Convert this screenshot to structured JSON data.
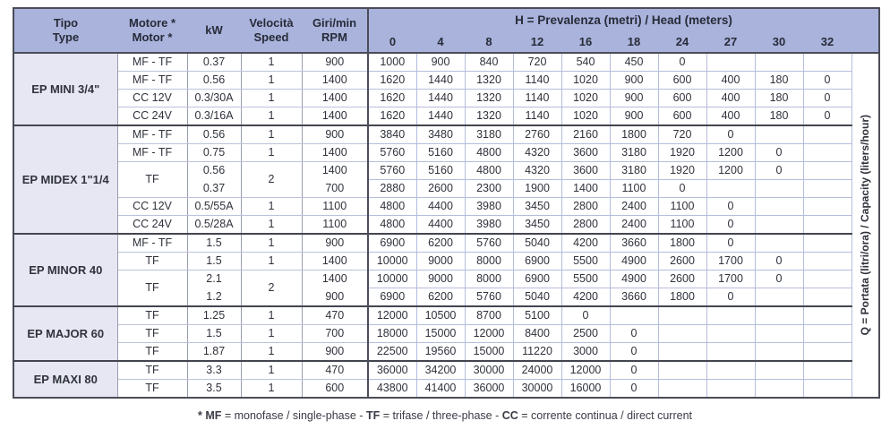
{
  "header": {
    "columns": [
      {
        "line1": "Tipo",
        "line2": "Type"
      },
      {
        "line1": "Motore *",
        "line2": "Motor *"
      },
      {
        "line1": "kW",
        "line2": ""
      },
      {
        "line1": "Velocità",
        "line2": "Speed"
      },
      {
        "line1": "Giri/min",
        "line2": "RPM"
      }
    ],
    "head_title": {
      "bold": "H",
      "rest": " = Prevalenza (metri) / Head (meters)"
    },
    "head_values": [
      "0",
      "4",
      "8",
      "12",
      "16",
      "18",
      "24",
      "27",
      "30",
      "32"
    ]
  },
  "q_label": {
    "bold": "Q",
    "rest": " = Portata (litri/ora) / Capacity (liters/hour)"
  },
  "groups": [
    {
      "name": "EP MINI 3/4\"",
      "rows": [
        {
          "motor": "MF - TF",
          "kw": "0.37",
          "speed": "1",
          "rpm": "900",
          "q": [
            "1000",
            "900",
            "840",
            "720",
            "540",
            "450",
            "0",
            "",
            "",
            ""
          ]
        },
        {
          "motor": "MF - TF",
          "kw": "0.56",
          "speed": "1",
          "rpm": "1400",
          "q": [
            "1620",
            "1440",
            "1320",
            "1140",
            "1020",
            "900",
            "600",
            "400",
            "180",
            "0"
          ]
        },
        {
          "motor": "CC 12V",
          "kw": "0.3/30A",
          "speed": "1",
          "rpm": "1400",
          "q": [
            "1620",
            "1440",
            "1320",
            "1140",
            "1020",
            "900",
            "600",
            "400",
            "180",
            "0"
          ]
        },
        {
          "motor": "CC 24V",
          "kw": "0.3/16A",
          "speed": "1",
          "rpm": "1400",
          "q": [
            "1620",
            "1440",
            "1320",
            "1140",
            "1020",
            "900",
            "600",
            "400",
            "180",
            "0"
          ]
        }
      ]
    },
    {
      "name": "EP MIDEX 1\"1/4",
      "rows": [
        {
          "motor": "MF - TF",
          "kw": "0.56",
          "speed": "1",
          "rpm": "900",
          "q": [
            "3840",
            "3480",
            "3180",
            "2760",
            "2160",
            "1800",
            "720",
            "0",
            "",
            ""
          ]
        },
        {
          "motor": "MF - TF",
          "kw": "0.75",
          "speed": "1",
          "rpm": "1400",
          "q": [
            "5760",
            "5160",
            "4800",
            "4320",
            "3600",
            "3180",
            "1920",
            "1200",
            "0",
            ""
          ]
        },
        {
          "motor": "TF",
          "speed": "2",
          "sub": [
            {
              "kw": "0.56",
              "rpm": "1400",
              "q": [
                "5760",
                "5160",
                "4800",
                "4320",
                "3600",
                "3180",
                "1920",
                "1200",
                "0",
                ""
              ]
            },
            {
              "kw": "0.37",
              "rpm": "700",
              "q": [
                "2880",
                "2600",
                "2300",
                "1900",
                "1400",
                "1100",
                "0",
                "",
                "",
                ""
              ]
            }
          ]
        },
        {
          "motor": "CC 12V",
          "kw": "0.5/55A",
          "speed": "1",
          "rpm": "1100",
          "q": [
            "4800",
            "4400",
            "3980",
            "3450",
            "2800",
            "2400",
            "1100",
            "0",
            "",
            ""
          ]
        },
        {
          "motor": "CC 24V",
          "kw": "0.5/28A",
          "speed": "1",
          "rpm": "1100",
          "q": [
            "4800",
            "4400",
            "3980",
            "3450",
            "2800",
            "2400",
            "1100",
            "0",
            "",
            ""
          ]
        }
      ]
    },
    {
      "name": "EP MINOR 40",
      "rows": [
        {
          "motor": "MF - TF",
          "kw": "1.5",
          "speed": "1",
          "rpm": "900",
          "q": [
            "6900",
            "6200",
            "5760",
            "5040",
            "4200",
            "3660",
            "1800",
            "0",
            "",
            ""
          ]
        },
        {
          "motor": "TF",
          "kw": "1.5",
          "speed": "1",
          "rpm": "1400",
          "q": [
            "10000",
            "9000",
            "8000",
            "6900",
            "5500",
            "4900",
            "2600",
            "1700",
            "0",
            ""
          ]
        },
        {
          "motor": "TF",
          "speed": "2",
          "sub": [
            {
              "kw": "2.1",
              "rpm": "1400",
              "q": [
                "10000",
                "9000",
                "8000",
                "6900",
                "5500",
                "4900",
                "2600",
                "1700",
                "0",
                ""
              ]
            },
            {
              "kw": "1.2",
              "rpm": "900",
              "q": [
                "6900",
                "6200",
                "5760",
                "5040",
                "4200",
                "3660",
                "1800",
                "0",
                "",
                ""
              ]
            }
          ]
        }
      ]
    },
    {
      "name": "EP MAJOR 60",
      "rows": [
        {
          "motor": "TF",
          "kw": "1.25",
          "speed": "1",
          "rpm": "470",
          "q": [
            "12000",
            "10500",
            "8700",
            "5100",
            "0",
            "",
            "",
            "",
            "",
            ""
          ]
        },
        {
          "motor": "TF",
          "kw": "1.5",
          "speed": "1",
          "rpm": "700",
          "q": [
            "18000",
            "15000",
            "12000",
            "8400",
            "2500",
            "0",
            "",
            "",
            "",
            ""
          ]
        },
        {
          "motor": "TF",
          "kw": "1.87",
          "speed": "1",
          "rpm": "900",
          "q": [
            "22500",
            "19560",
            "15000",
            "11220",
            "3000",
            "0",
            "",
            "",
            "",
            ""
          ]
        }
      ]
    },
    {
      "name": "EP MAXI 80",
      "rows": [
        {
          "motor": "TF",
          "kw": "3.3",
          "speed": "1",
          "rpm": "470",
          "q": [
            "36000",
            "34200",
            "30000",
            "24000",
            "12000",
            "0",
            "",
            "",
            "",
            ""
          ]
        },
        {
          "motor": "TF",
          "kw": "3.5",
          "speed": "1",
          "rpm": "600",
          "q": [
            "43800",
            "41400",
            "36000",
            "30000",
            "16000",
            "0",
            "",
            "",
            "",
            ""
          ]
        }
      ]
    }
  ],
  "footnote": {
    "segments": [
      {
        "text": "* MF",
        "bold": true
      },
      {
        "text": " = monofase / single-phase - ",
        "bold": false
      },
      {
        "text": "TF",
        "bold": true
      },
      {
        "text": " = trifase / three-phase - ",
        "bold": false
      },
      {
        "text": "CC",
        "bold": true
      },
      {
        "text": " = corrente continua / direct current",
        "bold": false
      }
    ]
  }
}
